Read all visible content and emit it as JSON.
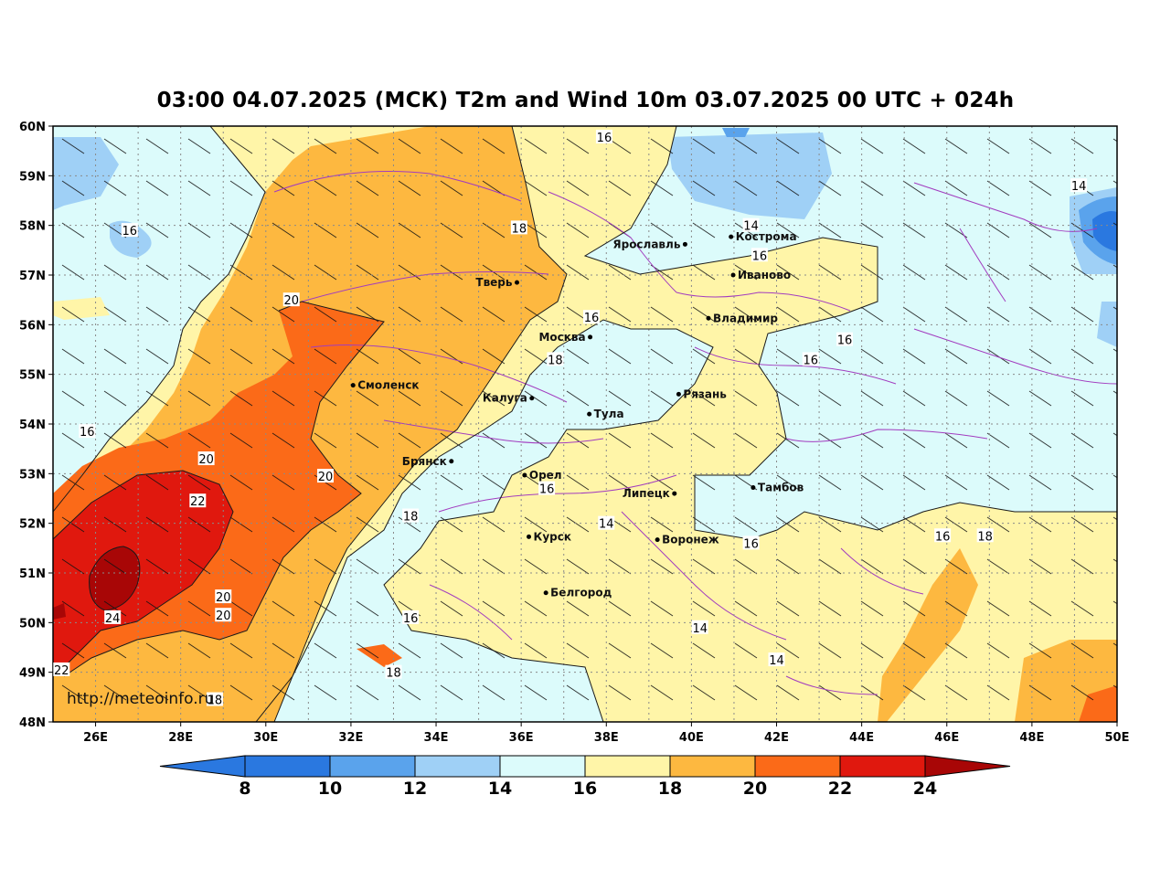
{
  "title": "03:00 04.07.2025 (МСК) T2m and Wind 10m 03.07.2025 00 UTC + 024h",
  "url": "http://meteoinfo.ru",
  "colors": {
    "c8_10": "#2a78e0",
    "c10_12": "#5aa3ec",
    "c12_14": "#9fd0f6",
    "c14_16": "#dcfbfb",
    "c16_18": "#fff5a8",
    "c18_20": "#fdb840",
    "c20_22": "#fb6a18",
    "c22_24": "#e0180e",
    "c24_plus": "#a80606",
    "border": "#a23cbf",
    "grid": "#8a8a8a"
  },
  "map": {
    "lat_ticks": [
      "60N",
      "59N",
      "58N",
      "57N",
      "56N",
      "55N",
      "54N",
      "53N",
      "52N",
      "51N",
      "50N",
      "49N",
      "48N"
    ],
    "lon_ticks": [
      "26E",
      "28E",
      "30E",
      "32E",
      "34E",
      "36E",
      "38E",
      "40E",
      "42E",
      "44E",
      "46E",
      "48E",
      "50E"
    ],
    "cities": [
      {
        "name": "Ярославль",
        "lon": 39.85,
        "lat": 57.62,
        "anchor": "end"
      },
      {
        "name": "Кострома",
        "lon": 40.93,
        "lat": 57.77,
        "anchor": "start"
      },
      {
        "name": "Иваново",
        "lon": 40.98,
        "lat": 57.0,
        "anchor": "start"
      },
      {
        "name": "Тверь",
        "lon": 35.9,
        "lat": 56.85,
        "anchor": "end"
      },
      {
        "name": "Владимир",
        "lon": 40.4,
        "lat": 56.13,
        "anchor": "start"
      },
      {
        "name": "Москва",
        "lon": 37.62,
        "lat": 55.75,
        "anchor": "end"
      },
      {
        "name": "Смоленск",
        "lon": 32.05,
        "lat": 54.78,
        "anchor": "start"
      },
      {
        "name": "Калуга",
        "lon": 36.25,
        "lat": 54.52,
        "anchor": "end"
      },
      {
        "name": "Рязань",
        "lon": 39.7,
        "lat": 54.6,
        "anchor": "start"
      },
      {
        "name": "Тула",
        "lon": 37.6,
        "lat": 54.2,
        "anchor": "start"
      },
      {
        "name": "Брянск",
        "lon": 34.36,
        "lat": 53.25,
        "anchor": "end"
      },
      {
        "name": "Орел",
        "lon": 36.08,
        "lat": 52.97,
        "anchor": "start"
      },
      {
        "name": "Липецк",
        "lon": 39.6,
        "lat": 52.6,
        "anchor": "end"
      },
      {
        "name": "Тамбов",
        "lon": 41.45,
        "lat": 52.72,
        "anchor": "start"
      },
      {
        "name": "Курск",
        "lon": 36.18,
        "lat": 51.73,
        "anchor": "start"
      },
      {
        "name": "Воронеж",
        "lon": 39.2,
        "lat": 51.67,
        "anchor": "start"
      },
      {
        "name": "Белгород",
        "lon": 36.58,
        "lat": 50.6,
        "anchor": "start"
      }
    ],
    "contour_labels": [
      {
        "text": "16",
        "lon": 37.95,
        "lat": 59.78
      },
      {
        "text": "16",
        "lon": 26.8,
        "lat": 57.9
      },
      {
        "text": "18",
        "lon": 35.95,
        "lat": 57.95
      },
      {
        "text": "14",
        "lon": 41.4,
        "lat": 58.0
      },
      {
        "text": "16",
        "lon": 41.6,
        "lat": 57.4
      },
      {
        "text": "14",
        "lon": 49.1,
        "lat": 58.8
      },
      {
        "text": "20",
        "lon": 30.6,
        "lat": 56.5
      },
      {
        "text": "16",
        "lon": 37.65,
        "lat": 56.15
      },
      {
        "text": "16",
        "lon": 43.6,
        "lat": 55.7
      },
      {
        "text": "18",
        "lon": 36.8,
        "lat": 55.3
      },
      {
        "text": "16",
        "lon": 42.8,
        "lat": 55.3
      },
      {
        "text": "16",
        "lon": 25.8,
        "lat": 53.85
      },
      {
        "text": "20",
        "lon": 28.6,
        "lat": 53.3
      },
      {
        "text": "20",
        "lon": 31.4,
        "lat": 52.95
      },
      {
        "text": "16",
        "lon": 36.6,
        "lat": 52.7
      },
      {
        "text": "22",
        "lon": 28.4,
        "lat": 52.45
      },
      {
        "text": "18",
        "lon": 33.4,
        "lat": 52.15
      },
      {
        "text": "14",
        "lon": 38.0,
        "lat": 52.0
      },
      {
        "text": "16",
        "lon": 45.9,
        "lat": 51.75
      },
      {
        "text": "18",
        "lon": 46.9,
        "lat": 51.75
      },
      {
        "text": "16",
        "lon": 41.4,
        "lat": 51.6
      },
      {
        "text": "20",
        "lon": 29.0,
        "lat": 50.52
      },
      {
        "text": "20",
        "lon": 29.0,
        "lat": 50.15
      },
      {
        "text": "24",
        "lon": 26.4,
        "lat": 50.1
      },
      {
        "text": "16",
        "lon": 33.4,
        "lat": 50.1
      },
      {
        "text": "14",
        "lon": 40.2,
        "lat": 49.9
      },
      {
        "text": "14",
        "lon": 42.0,
        "lat": 49.25
      },
      {
        "text": "22",
        "lon": 25.2,
        "lat": 49.05
      },
      {
        "text": "18",
        "lon": 33.0,
        "lat": 49.0
      },
      {
        "text": "18",
        "lon": 28.8,
        "lat": 48.45
      }
    ]
  },
  "colorbar": {
    "labels": [
      "8",
      "10",
      "12",
      "14",
      "16",
      "18",
      "20",
      "22",
      "24"
    ]
  }
}
